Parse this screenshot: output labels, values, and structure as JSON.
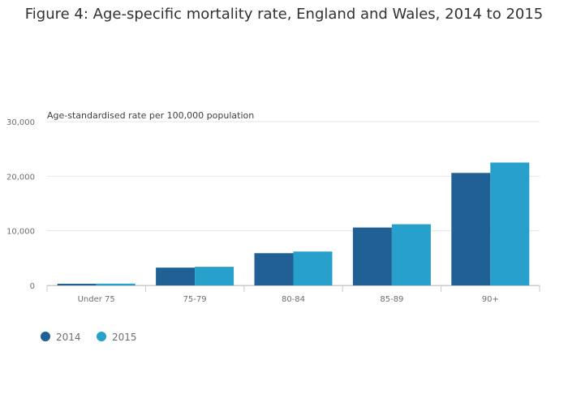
{
  "chart_data": {
    "type": "bar",
    "title": "Figure 4: Age-specific mortality rate, England and Wales, 2014 to 2015",
    "ylabel": "Age-standardised rate per 100,000 population",
    "xlabel": "",
    "categories": [
      "Under 75",
      "75-79",
      "80-84",
      "85-89",
      "90+"
    ],
    "series": [
      {
        "name": "2014",
        "color": "#206095",
        "values": [
          300,
          3250,
          5900,
          10600,
          20600
        ]
      },
      {
        "name": "2015",
        "color": "#27a0cc",
        "values": [
          320,
          3400,
          6200,
          11200,
          22500
        ]
      }
    ],
    "ylim": [
      0,
      30000
    ],
    "yticks": [
      0,
      10000,
      20000,
      30000
    ],
    "ytick_labels": [
      "0",
      "10,000",
      "20,000",
      "30,000"
    ],
    "grid": true,
    "legend_position": "bottom-left"
  }
}
